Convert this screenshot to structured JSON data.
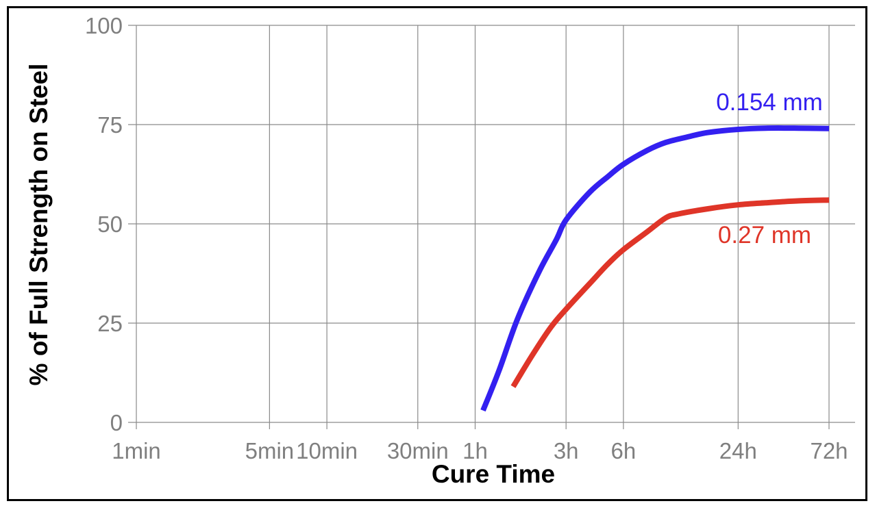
{
  "chart_data": {
    "type": "line",
    "title": "",
    "xlabel": "Cure Time",
    "ylabel": "% of Full Strength on Steel",
    "x_scale": "log",
    "x_unit": "minutes",
    "xlim": [
      1,
      4320
    ],
    "ylim": [
      0,
      100
    ],
    "grid": true,
    "x_ticks": [
      {
        "value": 1,
        "label": "1min"
      },
      {
        "value": 5,
        "label": "5min"
      },
      {
        "value": 10,
        "label": "10min"
      },
      {
        "value": 30,
        "label": "30min"
      },
      {
        "value": 60,
        "label": "1h"
      },
      {
        "value": 180,
        "label": "3h"
      },
      {
        "value": 360,
        "label": "6h"
      },
      {
        "value": 1440,
        "label": "24h"
      },
      {
        "value": 4320,
        "label": "72h"
      }
    ],
    "y_ticks": [
      {
        "value": 0,
        "label": "0"
      },
      {
        "value": 25,
        "label": "25"
      },
      {
        "value": 50,
        "label": "50"
      },
      {
        "value": 75,
        "label": "75"
      },
      {
        "value": 100,
        "label": "100"
      }
    ],
    "series": [
      {
        "name": "0.154 mm",
        "color": "#3320f0",
        "x": [
          66,
          80,
          100,
          130,
          160,
          180,
          240,
          300,
          360,
          480,
          600,
          800,
          1000,
          1440,
          2000,
          3000,
          4320
        ],
        "y": [
          3,
          13,
          26,
          38,
          46,
          51,
          58,
          62,
          65,
          68.5,
          70.5,
          72,
          73,
          73.8,
          74.1,
          74.1,
          74
        ]
      },
      {
        "name": "0.27 mm",
        "color": "#df3528",
        "x": [
          95,
          120,
          150,
          180,
          240,
          300,
          360,
          480,
          600,
          700,
          1000,
          1440,
          2000,
          3000,
          4320
        ],
        "y": [
          9,
          17,
          24,
          28.5,
          35,
          40,
          43.5,
          48,
          51.5,
          52.5,
          53.8,
          54.8,
          55.3,
          55.8,
          56
        ]
      }
    ],
    "annotations": [
      "0.154 mm",
      "0.27 mm"
    ]
  }
}
